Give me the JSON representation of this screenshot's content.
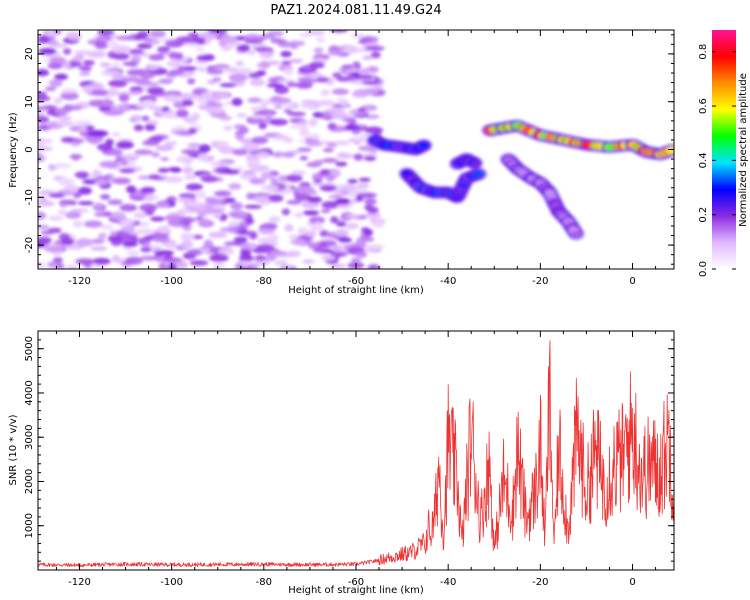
{
  "title": "PAZ1.2024.081.11.49.G24",
  "chart_data": [
    {
      "type": "heatmap",
      "xlabel": "Height of straight line (km)",
      "ylabel": "Frequency (Hz)",
      "xlim": [
        -129,
        9
      ],
      "ylim": [
        -25,
        25
      ],
      "xticks": [
        -120,
        -100,
        -80,
        -60,
        -40,
        -20,
        0
      ],
      "yticks": [
        -20,
        -10,
        0,
        10,
        20
      ],
      "colorbar": {
        "label": "Normalized spectral amplitude",
        "range": [
          0,
          0.88
        ],
        "ticks": [
          0.0,
          0.2,
          0.4,
          0.6,
          0.8
        ],
        "colormap": [
          "#ffffff",
          "#e0b8ff",
          "#8a2be2",
          "#0000ff",
          "#00e5ff",
          "#00ff00",
          "#ffff00",
          "#ff8c00",
          "#ff0000",
          "#ff1493"
        ]
      },
      "features": [
        {
          "name": "noise-field",
          "x_range": [
            -129,
            -55
          ],
          "f_range": [
            -25,
            25
          ],
          "amplitude": 0.15
        },
        {
          "name": "echo-a",
          "points": [
            [
              -56,
              2
            ],
            [
              -54,
              1
            ],
            [
              -50,
              0.5
            ],
            [
              -47,
              0
            ],
            [
              -45,
              1
            ]
          ],
          "amplitude": 0.32
        },
        {
          "name": "echo-b",
          "points": [
            [
              -49,
              -5
            ],
            [
              -46,
              -8
            ],
            [
              -43,
              -9
            ],
            [
              -40,
              -9
            ],
            [
              -38,
              -10
            ],
            [
              -36,
              -6
            ],
            [
              -33,
              -5
            ]
          ],
          "amplitude": 0.32
        },
        {
          "name": "echo-c",
          "points": [
            [
              -38,
              -3
            ],
            [
              -36,
              -2
            ],
            [
              -34,
              -3
            ]
          ],
          "amplitude": 0.3
        },
        {
          "name": "signal-main",
          "points": [
            [
              -31,
              4
            ],
            [
              -28,
              4.5
            ],
            [
              -25,
              5
            ],
            [
              -20,
              3
            ],
            [
              -15,
              2
            ],
            [
              -10,
              1
            ],
            [
              -5,
              0.5
            ],
            [
              0,
              1
            ],
            [
              3,
              -0.5
            ],
            [
              6,
              -1
            ],
            [
              9,
              0
            ]
          ],
          "amplitude": 0.82
        },
        {
          "name": "branch-lower",
          "points": [
            [
              -27,
              -2
            ],
            [
              -25,
              -4
            ],
            [
              -22,
              -6
            ],
            [
              -20,
              -7
            ],
            [
              -18,
              -9
            ],
            [
              -16,
              -13
            ],
            [
              -14,
              -15
            ],
            [
              -12,
              -18
            ]
          ],
          "amplitude": 0.2
        }
      ]
    },
    {
      "type": "line",
      "xlabel": "Height of straight line (km)",
      "ylabel": "SNR (10 * v/v)",
      "xlim": [
        -129,
        9
      ],
      "ylim": [
        0,
        5400
      ],
      "xticks": [
        -120,
        -100,
        -80,
        -60,
        -40,
        -20,
        0
      ],
      "yticks": [
        1000,
        2000,
        3000,
        4000,
        5000
      ],
      "line_color": "#ee3333",
      "series": [
        {
          "x": [
            -129,
            -120,
            -110,
            -100,
            -90,
            -80,
            -70,
            -60,
            -56,
            -52,
            -48,
            -45,
            -43,
            -42,
            -41,
            -40,
            -38,
            -37,
            -35,
            -33,
            -31,
            -30,
            -28,
            -26,
            -25,
            -23,
            -21,
            -20,
            -19,
            -18,
            -17,
            -16,
            -14,
            -12,
            -10,
            -8,
            -6,
            -4,
            -2,
            0,
            2,
            4,
            6,
            8,
            9
          ],
          "y": [
            120,
            110,
            130,
            120,
            125,
            130,
            120,
            130,
            200,
            300,
            400,
            600,
            1500,
            3300,
            1000,
            4000,
            2800,
            800,
            4300,
            1500,
            3300,
            600,
            2800,
            1800,
            3800,
            1500,
            2500,
            3900,
            900,
            5400,
            700,
            3800,
            1200,
            4300,
            2400,
            3700,
            2600,
            3300,
            3500,
            4400,
            3000,
            3300,
            3100,
            4200,
            2200
          ]
        }
      ]
    }
  ]
}
